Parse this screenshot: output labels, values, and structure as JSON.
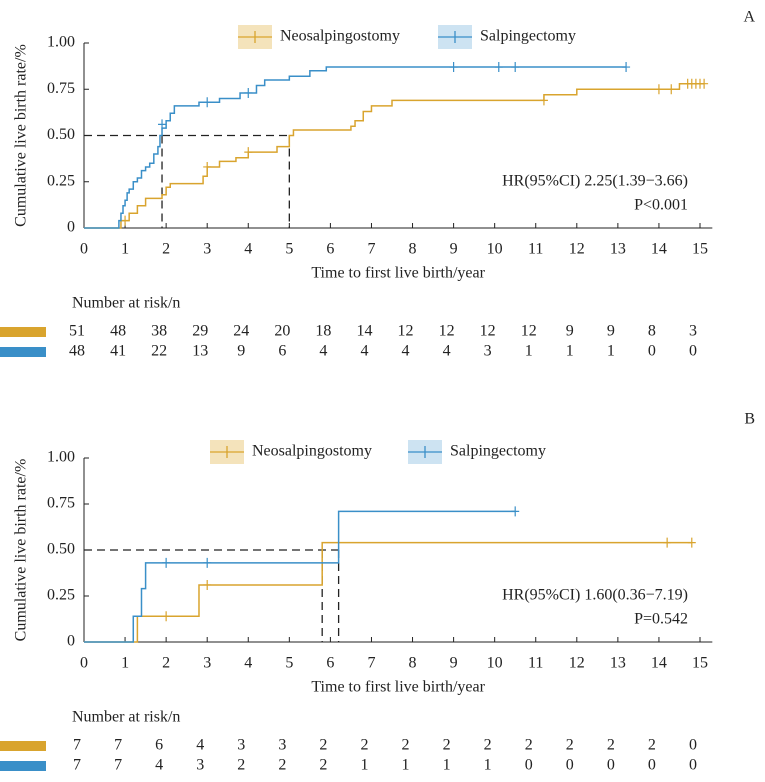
{
  "chart_data": [
    {
      "type": "step",
      "label": "A",
      "xlabel": "Time to first live birth/year",
      "ylabel": "Cumulative live birth rate/%",
      "xlim": [
        0,
        15.3
      ],
      "ylim": [
        0,
        1
      ],
      "xticks": [
        0,
        1,
        2,
        3,
        4,
        5,
        6,
        7,
        8,
        9,
        10,
        11,
        12,
        13,
        14,
        15
      ],
      "yticks": [
        0,
        0.25,
        {
          "value": 0.5,
          "label": "0.50"
        },
        0.75,
        {
          "value": 1,
          "label": "1.00"
        }
      ],
      "median_level": 0.5,
      "medians": [
        1.9,
        5.0
      ],
      "hr": "HR(95%CI) 2.25(1.39−3.66)",
      "p": "P<0.001",
      "risk_title": "Number at risk/n",
      "series": [
        {
          "name": "Neosalpingostomy",
          "color": "#d9a42e",
          "x": [
            0,
            0.9,
            1.1,
            1.3,
            1.5,
            1.9,
            2.0,
            2.1,
            2.9,
            3.0,
            3.3,
            3.7,
            4.0,
            4.7,
            5.0,
            5.1,
            6.5,
            6.6,
            6.8,
            7.0,
            7.5,
            11.2,
            12.0,
            14.5,
            15.1
          ],
          "values": [
            0,
            0.04,
            0.08,
            0.12,
            0.16,
            0.18,
            0.22,
            0.24,
            0.28,
            0.33,
            0.36,
            0.38,
            0.41,
            0.44,
            0.5,
            0.53,
            0.55,
            0.58,
            0.63,
            0.66,
            0.69,
            0.72,
            0.75,
            0.78,
            0.78
          ],
          "censored_x": [
            1.0,
            3.0,
            4.0,
            11.2,
            14.0,
            14.3,
            14.7,
            14.8,
            14.9,
            15.0,
            15.1
          ],
          "censored_values": [
            0.04,
            0.33,
            0.41,
            0.69,
            0.75,
            0.75,
            0.78,
            0.78,
            0.78,
            0.78,
            0.78
          ],
          "at_risk": [
            51,
            48,
            38,
            29,
            24,
            20,
            18,
            14,
            12,
            12,
            12,
            12,
            9,
            9,
            8,
            3
          ]
        },
        {
          "name": "Salpingectomy",
          "color": "#3a8fc8",
          "x": [
            0,
            0.85,
            0.9,
            0.95,
            1.0,
            1.05,
            1.1,
            1.2,
            1.3,
            1.4,
            1.5,
            1.6,
            1.7,
            1.8,
            1.85,
            1.9,
            2.0,
            2.1,
            2.2,
            2.8,
            3.3,
            3.8,
            4.2,
            4.4,
            5.0,
            5.5,
            5.9,
            13.2
          ],
          "values": [
            0,
            0.04,
            0.08,
            0.12,
            0.15,
            0.19,
            0.21,
            0.25,
            0.27,
            0.31,
            0.33,
            0.35,
            0.4,
            0.44,
            0.5,
            0.54,
            0.58,
            0.62,
            0.66,
            0.68,
            0.7,
            0.73,
            0.77,
            0.8,
            0.82,
            0.85,
            0.87,
            0.87
          ],
          "censored_x": [
            1.9,
            3.0,
            4.0,
            9.0,
            10.1,
            10.5,
            13.2
          ],
          "censored_values": [
            0.56,
            0.68,
            0.73,
            0.87,
            0.87,
            0.87,
            0.87
          ],
          "at_risk": [
            48,
            41,
            22,
            13,
            9,
            6,
            4,
            4,
            4,
            4,
            3,
            1,
            1,
            1,
            0,
            0
          ]
        }
      ]
    },
    {
      "type": "step",
      "label": "B",
      "xlabel": "Time to first live birth/year",
      "ylabel": "Cumulative live birth rate/%",
      "xlim": [
        0,
        15.3
      ],
      "ylim": [
        0,
        1
      ],
      "xticks": [
        0,
        1,
        2,
        3,
        4,
        5,
        6,
        7,
        8,
        9,
        10,
        11,
        12,
        13,
        14,
        15
      ],
      "yticks": [
        0,
        0.25,
        {
          "value": 0.5,
          "label": "0.50"
        },
        0.75,
        {
          "value": 1,
          "label": "1.00"
        }
      ],
      "median_level": 0.5,
      "medians": [
        5.8,
        6.2
      ],
      "hr": "HR(95%CI) 1.60(0.36−7.19)",
      "p": "P=0.542",
      "risk_title": "Number at risk/n",
      "series": [
        {
          "name": "Neosalpingostomy",
          "color": "#d9a42e",
          "x": [
            0,
            1.3,
            2.8,
            5.8,
            14.8
          ],
          "values": [
            0,
            0.14,
            0.31,
            0.54,
            0.54
          ],
          "censored_x": [
            2,
            3,
            14.2,
            14.8
          ],
          "censored_values": [
            0.14,
            0.31,
            0.54,
            0.54
          ],
          "at_risk": [
            7,
            7,
            6,
            4,
            3,
            3,
            2,
            2,
            2,
            2,
            2,
            2,
            2,
            2,
            2,
            0
          ]
        },
        {
          "name": "Salpingectomy",
          "color": "#3a8fc8",
          "x": [
            0,
            1.2,
            1.4,
            1.5,
            6.2,
            10.5
          ],
          "values": [
            0,
            0.14,
            0.29,
            0.43,
            0.71,
            0.71
          ],
          "censored_x": [
            2,
            3,
            10.5
          ],
          "censored_values": [
            0.43,
            0.43,
            0.71
          ],
          "at_risk": [
            7,
            7,
            4,
            3,
            2,
            2,
            2,
            1,
            1,
            1,
            1,
            0,
            0,
            0,
            0,
            0
          ]
        }
      ]
    }
  ]
}
